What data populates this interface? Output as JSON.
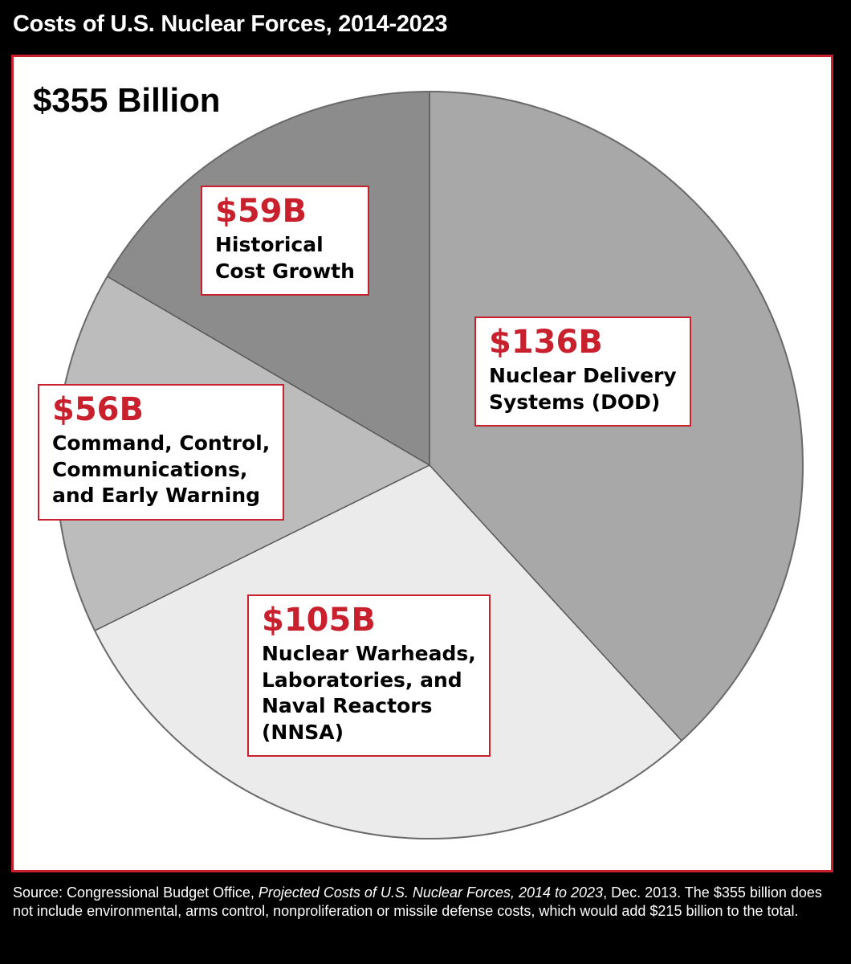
{
  "header": {
    "title": "Costs of U.S. Nuclear Forces, 2014-2023"
  },
  "chart_data": {
    "type": "pie",
    "title": "Costs of U.S. Nuclear Forces, 2014-2023",
    "total_label": "$355 Billion",
    "slices": [
      {
        "value_label": "$136B",
        "value": 136,
        "label_lines": [
          "Nuclear Delivery",
          "Systems (DOD)"
        ],
        "color": "#a8a8a8"
      },
      {
        "value_label": "$105B",
        "value": 105,
        "label_lines": [
          "Nuclear Warheads,",
          "Laboratories, and",
          "Naval Reactors",
          "(NNSA)"
        ],
        "color": "#ebebeb"
      },
      {
        "value_label": "$56B",
        "value": 56,
        "label_lines": [
          "Command, Control,",
          "Communications,",
          "and Early Warning"
        ],
        "color": "#bcbcbc"
      },
      {
        "value_label": "$59B",
        "value": 59,
        "label_lines": [
          "Historical",
          "Cost Growth"
        ],
        "color": "#8c8c8c"
      }
    ],
    "units": "billions of dollars"
  },
  "source": {
    "prefix": "Source: Congressional Budget Office, ",
    "publication": "Projected Costs of U.S. Nuclear Forces, 2014 to 2023",
    "suffix": ", Dec. 2013. The $355 billion does not include environmental, arms control, nonproliferation or missile defense costs, which would add $215 billion to the total."
  },
  "colors": {
    "accent": "#c8202c",
    "background": "#000000",
    "panel": "#ffffff"
  }
}
